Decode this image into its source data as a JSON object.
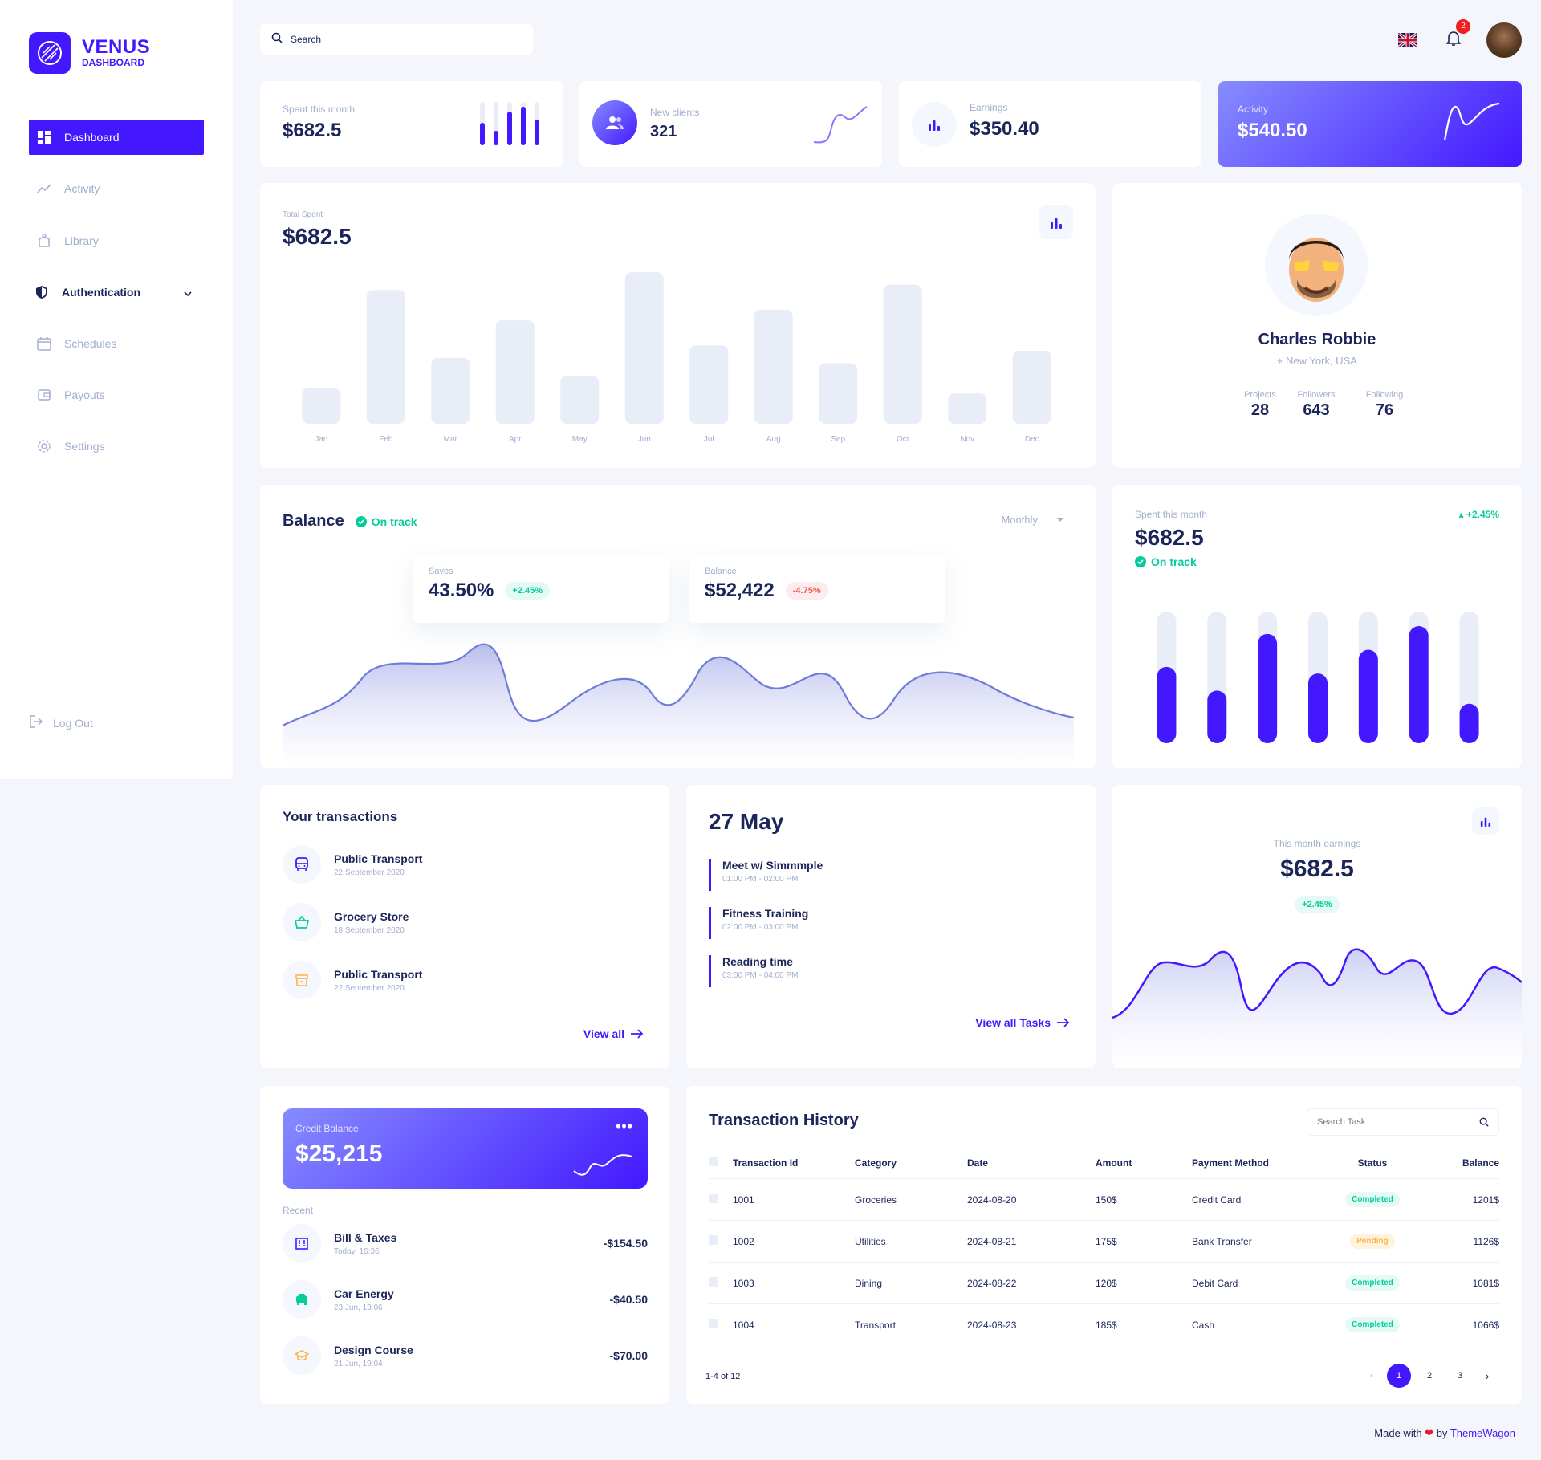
{
  "app": {
    "name": "VENUS",
    "subtitle": "DASHBOARD"
  },
  "nav": {
    "items": [
      {
        "label": "Dashboard",
        "icon": "dashboard-icon"
      },
      {
        "label": "Activity",
        "icon": "trend-icon"
      },
      {
        "label": "Library",
        "icon": "library-icon"
      },
      {
        "label": "Authentication",
        "icon": "shield-icon"
      },
      {
        "label": "Schedules",
        "icon": "calendar-icon"
      },
      {
        "label": "Payouts",
        "icon": "wallet-icon"
      },
      {
        "label": "Settings",
        "icon": "gear-icon"
      }
    ],
    "logout": "Log Out"
  },
  "search": {
    "placeholder": "Search"
  },
  "notifications": {
    "count": "2"
  },
  "stats": [
    {
      "label": "Spent this month",
      "value": "$682.5"
    },
    {
      "label": "New clients",
      "value": "321"
    },
    {
      "label": "Earnings",
      "value": "$350.40"
    },
    {
      "label": "Activity",
      "value": "$540.50"
    }
  ],
  "total_spent": {
    "label": "Total Spent",
    "value": "$682.5",
    "chart_data": {
      "type": "bar",
      "categories": [
        "Jan",
        "Feb",
        "Mar",
        "Apr",
        "May",
        "Jun",
        "Jul",
        "Aug",
        "Sep",
        "Oct",
        "Nov",
        "Dec"
      ],
      "values": [
        20,
        75,
        37,
        58,
        27,
        85,
        44,
        64,
        34,
        78,
        17,
        41
      ],
      "ylim": [
        0,
        90
      ]
    }
  },
  "profile": {
    "name": "Charles Robbie",
    "location": "New York, USA",
    "stats": [
      {
        "label": "Projects",
        "value": "28"
      },
      {
        "label": "Followers",
        "value": "643"
      },
      {
        "label": "Following",
        "value": "76"
      }
    ]
  },
  "balance": {
    "title": "Balance",
    "status": "On track",
    "period": "Monthly",
    "saves": {
      "label": "Saves",
      "value": "43.50%",
      "change": "+2.45%"
    },
    "balance": {
      "label": "Balance",
      "value": "$52,422",
      "change": "-4.75%"
    }
  },
  "spent_card": {
    "label": "Spent this month",
    "value": "$682.5",
    "change": "+2.45%",
    "status": "On track",
    "chart_data": {
      "type": "bar",
      "values": [
        58,
        40,
        83,
        53,
        71,
        89,
        30
      ],
      "ylim": [
        0,
        100
      ]
    }
  },
  "transactions": {
    "title": "Your transactions",
    "items": [
      {
        "name": "Public Transport",
        "date": "22 September 2020",
        "icon": "bus-icon"
      },
      {
        "name": "Grocery Store",
        "date": "18 September 2020",
        "icon": "basket-icon"
      },
      {
        "name": "Public Transport",
        "date": "22 September 2020",
        "icon": "archive-icon"
      }
    ],
    "view_all": "View all"
  },
  "schedule": {
    "date": "27 May",
    "items": [
      {
        "title": "Meet w/ Simmmple",
        "time": "01:00 PM - 02:00 PM"
      },
      {
        "title": "Fitness Training",
        "time": "02:00 PM - 03:00 PM"
      },
      {
        "title": "Reading time",
        "time": "03:00 PM - 04:00 PM"
      }
    ],
    "view_all": "View all Tasks"
  },
  "earnings": {
    "label": "This month earnings",
    "value": "$682.5",
    "change": "+2.45%"
  },
  "credit": {
    "label": "Credit Balance",
    "value": "$25,215",
    "recent_label": "Recent",
    "items": [
      {
        "name": "Bill & Taxes",
        "date": "Today, 16:36",
        "amount": "-$154.50",
        "icon": "building-icon"
      },
      {
        "name": "Car Energy",
        "date": "23 Jun, 13:06",
        "amount": "-$40.50",
        "icon": "car-icon"
      },
      {
        "name": "Design Course",
        "date": "21 Jun, 19:04",
        "amount": "-$70.00",
        "icon": "graduation-icon"
      }
    ]
  },
  "history": {
    "title": "Transaction History",
    "search_placeholder": "Search Task",
    "columns": [
      "Transaction Id",
      "Category",
      "Date",
      "Amount",
      "Payment Method",
      "Status",
      "Balance"
    ],
    "rows": [
      {
        "id": "1001",
        "category": "Groceries",
        "date": "2024-08-20",
        "amount": "150$",
        "method": "Credit Card",
        "status": "Completed",
        "balance": "1201$"
      },
      {
        "id": "1002",
        "category": "Utilities",
        "date": "2024-08-21",
        "amount": "175$",
        "method": "Bank Transfer",
        "status": "Pending",
        "balance": "1126$"
      },
      {
        "id": "1003",
        "category": "Dining",
        "date": "2024-08-22",
        "amount": "120$",
        "method": "Debit Card",
        "status": "Completed",
        "balance": "1081$"
      },
      {
        "id": "1004",
        "category": "Transport",
        "date": "2024-08-23",
        "amount": "185$",
        "method": "Cash",
        "status": "Completed",
        "balance": "1066$"
      }
    ],
    "range": "1-4 of 12",
    "pages": [
      "1",
      "2",
      "3"
    ]
  },
  "footer": {
    "prefix": "Made with",
    "by": "by",
    "brand": "ThemeWagon"
  },
  "colors": {
    "accent": "#4318ff",
    "text": "#1b2559",
    "muted": "#a3aed0",
    "green": "#05cd99",
    "red": "#ee5d50"
  }
}
